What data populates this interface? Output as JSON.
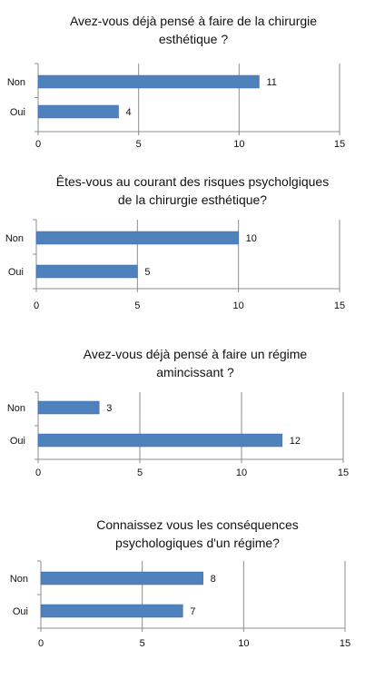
{
  "chart_data": [
    {
      "type": "bar",
      "orientation": "horizontal",
      "title_lines": [
        "Avez-vous déjà pensé à faire de la chirurgie",
        "esthétique ?"
      ],
      "categories": [
        "Non",
        "Oui"
      ],
      "values": [
        11,
        4
      ],
      "xlim": [
        0,
        15
      ],
      "xticks": [
        "0",
        "5",
        "10",
        "15"
      ],
      "grid": true,
      "legend": "none"
    },
    {
      "type": "bar",
      "orientation": "horizontal",
      "title_lines": [
        "Êtes-vous au courant des risques psycholgiques",
        "de la chirurgie esthétique?"
      ],
      "categories": [
        "Non",
        "Oui"
      ],
      "values": [
        10,
        5
      ],
      "xlim": [
        0,
        15
      ],
      "xticks": [
        "0",
        "5",
        "10",
        "15"
      ],
      "grid": true,
      "legend": "none"
    },
    {
      "type": "bar",
      "orientation": "horizontal",
      "title_lines": [
        "Avez-vous déjà pensé à faire un régime",
        "amincissant ?"
      ],
      "categories": [
        "Non",
        "Oui"
      ],
      "values": [
        3,
        12
      ],
      "xlim": [
        0,
        15
      ],
      "xticks": [
        "0",
        "5",
        "10",
        "15"
      ],
      "grid": true,
      "legend": "none"
    },
    {
      "type": "bar",
      "orientation": "horizontal",
      "title_lines": [
        "Connaissez vous les conséquences",
        "psychologiques d'un régime?"
      ],
      "categories": [
        "Non",
        "Oui"
      ],
      "values": [
        8,
        7
      ],
      "xlim": [
        0,
        15
      ],
      "xticks": [
        "0",
        "5",
        "10",
        "15"
      ],
      "grid": true,
      "legend": "none"
    }
  ],
  "colors": {
    "bar": "#4f81bd",
    "bar_edge": "#3a6aa3",
    "grid": "#8c8c8c",
    "axis": "#8c8c8c"
  }
}
